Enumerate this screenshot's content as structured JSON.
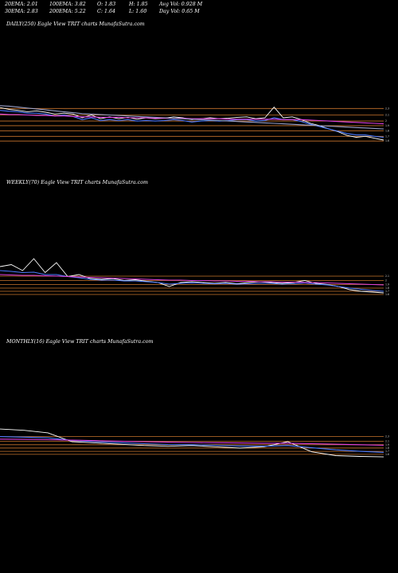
{
  "stats": {
    "ema20": "20EMA: 2.01",
    "ema30": "30EMA: 2.83",
    "ema100": "100EMA: 3.82",
    "ema200": "200EMA: 5.22",
    "open": "O: 1.83",
    "close": "C: 1.64",
    "high": "H: 1.85",
    "low": "L: 1.60",
    "avg_vol": "Avg Vol: 0.928  M",
    "day_vol": "Day Vol: 0.65 M"
  },
  "panels": {
    "daily": {
      "title": "DAILY(250) Eagle   View  TRIT charts MunafaSutra.com"
    },
    "weekly": {
      "title": "WEEKLY(70) Eagle   View  TRIT charts MunafaSutra.com"
    },
    "monthly": {
      "title": "MONTHLY(16) Eagle   View  TRIT charts MunafaSutra.com"
    }
  },
  "chart_data": [
    {
      "type": "line",
      "title": "DAILY(250) Eagle   View  TRIT charts MunafaSutra.com",
      "ylim": [
        1.4,
        2.6
      ],
      "h_levels": [
        1.62,
        1.72,
        1.84,
        1.95,
        2.05,
        2.18,
        2.32
      ],
      "h_level_color": "#c8742c",
      "level_ticks": [
        "2.3",
        "2.1",
        "2",
        "1.9",
        "1.8",
        "1.7",
        "1.6"
      ],
      "series": [
        {
          "color": "#ffffff",
          "values": [
            2.34,
            2.3,
            2.28,
            2.25,
            2.27,
            2.24,
            2.2,
            2.22,
            2.2,
            2.12,
            2.18,
            2.1,
            2.14,
            2.1,
            2.13,
            2.09,
            2.12,
            2.1,
            2.11,
            2.14,
            2.12,
            2.08,
            2.1,
            2.12,
            2.1,
            2.11,
            2.13,
            2.14,
            2.1,
            2.12,
            2.35,
            2.12,
            2.14,
            2.08,
            2.0,
            1.95,
            1.88,
            1.82,
            1.74,
            1.7,
            1.72,
            1.68,
            1.64
          ]
        },
        {
          "color": "#4a7aff",
          "values": [
            2.28,
            2.26,
            2.25,
            2.22,
            2.22,
            2.2,
            2.16,
            2.18,
            2.15,
            2.08,
            2.12,
            2.06,
            2.08,
            2.06,
            2.08,
            2.05,
            2.06,
            2.05,
            2.06,
            2.08,
            2.06,
            2.03,
            2.05,
            2.06,
            2.05,
            2.06,
            2.08,
            2.08,
            2.05,
            2.06,
            2.12,
            2.08,
            2.08,
            2.04,
            1.98,
            1.93,
            1.88,
            1.83,
            1.78,
            1.75,
            1.75,
            1.72,
            1.7
          ]
        },
        {
          "color": "#e040e0",
          "values": [
            2.2,
            2.19,
            2.19,
            2.18,
            2.17,
            2.17,
            2.16,
            2.16,
            2.15,
            2.14,
            2.14,
            2.13,
            2.13,
            2.13,
            2.12,
            2.12,
            2.12,
            2.11,
            2.11,
            2.11,
            2.11,
            2.1,
            2.1,
            2.1,
            2.1,
            2.09,
            2.09,
            2.09,
            2.09,
            2.09,
            2.09,
            2.08,
            2.08,
            2.08,
            2.07,
            2.06,
            2.05,
            2.04,
            2.03,
            2.02,
            2.01,
            2.0,
            1.99
          ]
        },
        {
          "color": "#9aa0c8",
          "values": [
            2.38,
            2.37,
            2.35,
            2.33,
            2.31,
            2.29,
            2.27,
            2.25,
            2.23,
            2.21,
            2.2,
            2.19,
            2.18,
            2.17,
            2.16,
            2.15,
            2.14,
            2.13,
            2.12,
            2.11,
            2.1,
            2.09,
            2.08,
            2.07,
            2.06,
            2.05,
            2.04,
            2.03,
            2.02,
            2.01,
            2.0,
            1.99,
            1.98,
            1.97,
            1.96,
            1.95,
            1.94,
            1.93,
            1.92,
            1.91,
            1.9,
            1.89,
            1.88
          ]
        }
      ]
    },
    {
      "type": "line",
      "title": "WEEKLY(70) Eagle   View  TRIT charts MunafaSutra.com",
      "ylim": [
        1.4,
        2.6
      ],
      "h_levels": [
        1.6,
        1.68,
        1.76,
        1.85,
        1.95,
        2.06
      ],
      "h_level_color": "#c8742c",
      "level_ticks": [
        "2.1",
        "2",
        "1.9",
        "1.8",
        "1.7",
        "1.6"
      ],
      "series": [
        {
          "color": "#ffffff",
          "values": [
            2.3,
            2.35,
            2.2,
            2.5,
            2.15,
            2.4,
            2.05,
            2.1,
            2.0,
            1.98,
            2.0,
            1.95,
            1.97,
            1.93,
            1.9,
            1.8,
            1.9,
            1.92,
            1.9,
            1.88,
            1.9,
            1.87,
            1.9,
            1.92,
            1.9,
            1.88,
            1.9,
            1.95,
            1.88,
            1.85,
            1.8,
            1.72,
            1.68,
            1.66,
            1.64
          ]
        },
        {
          "color": "#4a7aff",
          "values": [
            2.2,
            2.18,
            2.15,
            2.16,
            2.1,
            2.1,
            2.05,
            2.02,
            1.98,
            1.96,
            1.96,
            1.94,
            1.94,
            1.92,
            1.9,
            1.86,
            1.88,
            1.89,
            1.88,
            1.87,
            1.88,
            1.86,
            1.87,
            1.88,
            1.88,
            1.86,
            1.87,
            1.89,
            1.86,
            1.84,
            1.8,
            1.76,
            1.73,
            1.7,
            1.68
          ]
        },
        {
          "color": "#e040e0",
          "values": [
            2.1,
            2.09,
            2.08,
            2.08,
            2.07,
            2.06,
            2.05,
            2.04,
            2.03,
            2.02,
            2.01,
            2.0,
            1.99,
            1.98,
            1.97,
            1.96,
            1.96,
            1.95,
            1.95,
            1.94,
            1.94,
            1.93,
            1.93,
            1.92,
            1.92,
            1.91,
            1.91,
            1.9,
            1.9,
            1.89,
            1.88,
            1.87,
            1.86,
            1.85,
            1.84
          ]
        }
      ]
    },
    {
      "type": "line",
      "title": "MONTHLY(16) Eagle   View  TRIT charts MunafaSutra.com",
      "ylim": [
        1.0,
        3.2
      ],
      "h_levels": [
        1.6,
        1.72,
        1.85,
        1.98,
        2.12,
        2.3
      ],
      "h_level_color": "#c8742c",
      "level_ticks": [
        "2.3",
        "2.1",
        "1.9",
        "1.8",
        "1.7",
        "1.6"
      ],
      "series": [
        {
          "color": "#ffffff",
          "values": [
            2.6,
            2.55,
            2.45,
            2.1,
            2.05,
            2.0,
            1.95,
            1.92,
            1.95,
            1.9,
            1.85,
            1.9,
            2.1,
            1.7,
            1.55,
            1.52,
            1.5
          ]
        },
        {
          "color": "#4a7aff",
          "values": [
            2.3,
            2.28,
            2.25,
            2.15,
            2.1,
            2.06,
            2.02,
            1.99,
            1.98,
            1.96,
            1.93,
            1.92,
            1.95,
            1.86,
            1.78,
            1.72,
            1.68
          ]
        },
        {
          "color": "#e040e0",
          "values": [
            2.2,
            2.19,
            2.18,
            2.16,
            2.14,
            2.12,
            2.1,
            2.08,
            2.07,
            2.06,
            2.05,
            2.04,
            2.04,
            2.02,
            2.0,
            1.98,
            1.96
          ]
        }
      ]
    }
  ]
}
